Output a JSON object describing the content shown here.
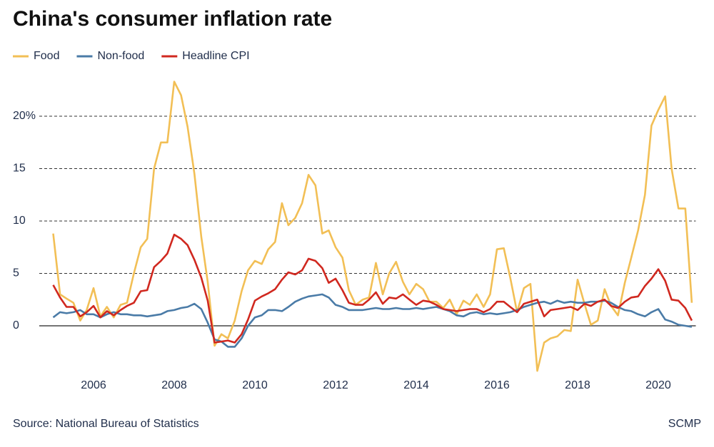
{
  "chart_data": {
    "type": "line",
    "title": "China's consumer inflation rate",
    "source": "Source: National Bureau of Statistics",
    "credit": "SCMP",
    "x": [
      2005,
      2005.17,
      2005.33,
      2005.5,
      2005.67,
      2005.83,
      2006,
      2006.17,
      2006.33,
      2006.5,
      2006.67,
      2006.83,
      2007,
      2007.17,
      2007.33,
      2007.5,
      2007.67,
      2007.83,
      2008,
      2008.17,
      2008.33,
      2008.5,
      2008.67,
      2008.83,
      2009,
      2009.17,
      2009.33,
      2009.5,
      2009.67,
      2009.83,
      2010,
      2010.17,
      2010.33,
      2010.5,
      2010.67,
      2010.83,
      2011,
      2011.17,
      2011.33,
      2011.5,
      2011.67,
      2011.83,
      2012,
      2012.17,
      2012.33,
      2012.5,
      2012.67,
      2012.83,
      2013,
      2013.17,
      2013.33,
      2013.5,
      2013.67,
      2013.83,
      2014,
      2014.17,
      2014.33,
      2014.5,
      2014.67,
      2014.83,
      2015,
      2015.17,
      2015.33,
      2015.5,
      2015.67,
      2015.83,
      2016,
      2016.17,
      2016.33,
      2016.5,
      2016.67,
      2016.83,
      2017,
      2017.17,
      2017.33,
      2017.5,
      2017.67,
      2017.83,
      2018,
      2018.17,
      2018.33,
      2018.5,
      2018.67,
      2018.83,
      2019,
      2019.17,
      2019.33,
      2019.5,
      2019.67,
      2019.83,
      2020,
      2020.17,
      2020.33,
      2020.5,
      2020.67,
      2020.83
    ],
    "series": [
      {
        "name": "Food",
        "color": "#f2bf55",
        "values": [
          8.8,
          3.0,
          2.6,
          2.2,
          0.5,
          1.5,
          3.6,
          0.9,
          1.8,
          0.8,
          2.0,
          2.2,
          5.0,
          7.5,
          8.3,
          15.0,
          17.5,
          17.5,
          23.3,
          22.0,
          19.0,
          14.5,
          8.5,
          4.2,
          -1.9,
          -0.8,
          -1.2,
          0.5,
          3.3,
          5.3,
          6.2,
          5.9,
          7.3,
          8.0,
          11.7,
          9.6,
          10.3,
          11.7,
          14.4,
          13.4,
          8.8,
          9.1,
          7.5,
          6.5,
          3.4,
          2.0,
          2.5,
          2.7,
          6.0,
          3.0,
          5.0,
          6.1,
          4.2,
          3.0,
          4.0,
          3.5,
          2.3,
          2.3,
          1.7,
          2.5,
          1.1,
          2.4,
          2.0,
          3.0,
          1.8,
          3.0,
          7.3,
          7.4,
          4.6,
          1.3,
          3.6,
          4.0,
          -4.3,
          -1.6,
          -1.2,
          -1.0,
          -0.4,
          -0.5,
          4.4,
          2.1,
          0.1,
          0.5,
          3.5,
          1.9,
          1.0,
          4.1,
          6.5,
          9.1,
          12.5,
          19.1,
          20.6,
          21.9,
          15.0,
          11.2,
          11.2,
          2.2
        ]
      },
      {
        "name": "Non-food",
        "color": "#4a7ba7",
        "values": [
          0.8,
          1.3,
          1.2,
          1.3,
          1.5,
          1.1,
          1.1,
          0.8,
          1.1,
          1.3,
          1.1,
          1.1,
          1.0,
          1.0,
          0.9,
          1.0,
          1.1,
          1.4,
          1.5,
          1.7,
          1.8,
          2.1,
          1.6,
          0.3,
          -1.3,
          -1.5,
          -2.0,
          -2.0,
          -1.2,
          0.0,
          0.8,
          1.0,
          1.5,
          1.5,
          1.4,
          1.8,
          2.3,
          2.6,
          2.8,
          2.9,
          3.0,
          2.7,
          2.0,
          1.8,
          1.5,
          1.5,
          1.5,
          1.6,
          1.7,
          1.6,
          1.6,
          1.7,
          1.6,
          1.6,
          1.7,
          1.6,
          1.7,
          1.8,
          1.6,
          1.4,
          1.0,
          0.9,
          1.2,
          1.3,
          1.1,
          1.2,
          1.1,
          1.2,
          1.3,
          1.5,
          1.8,
          2.0,
          2.2,
          2.3,
          2.1,
          2.4,
          2.2,
          2.3,
          2.2,
          2.2,
          2.3,
          2.3,
          2.4,
          2.2,
          1.8,
          1.5,
          1.4,
          1.1,
          0.9,
          1.3,
          1.6,
          0.6,
          0.4,
          0.1,
          0.0,
          -0.1
        ]
      },
      {
        "name": "Headline CPI",
        "color": "#d0281f",
        "values": [
          3.9,
          2.7,
          1.8,
          1.8,
          0.9,
          1.3,
          1.9,
          0.8,
          1.4,
          1.0,
          1.5,
          1.9,
          2.2,
          3.3,
          3.4,
          5.6,
          6.2,
          6.9,
          8.7,
          8.3,
          7.7,
          6.3,
          4.6,
          2.4,
          -1.6,
          -1.5,
          -1.4,
          -1.6,
          -0.8,
          0.6,
          2.4,
          2.8,
          3.1,
          3.5,
          4.4,
          5.1,
          4.9,
          5.3,
          6.4,
          6.2,
          5.5,
          4.1,
          4.5,
          3.4,
          2.2,
          2.0,
          2.0,
          2.5,
          3.2,
          2.1,
          2.7,
          2.6,
          3.0,
          2.5,
          2.0,
          2.4,
          2.3,
          2.0,
          1.6,
          1.5,
          1.4,
          1.5,
          1.6,
          1.6,
          1.3,
          1.6,
          2.3,
          2.3,
          1.8,
          1.3,
          2.1,
          2.3,
          2.5,
          0.9,
          1.5,
          1.6,
          1.7,
          1.8,
          1.5,
          2.1,
          1.9,
          2.3,
          2.5,
          1.9,
          1.7,
          2.3,
          2.7,
          2.8,
          3.8,
          4.5,
          5.4,
          4.3,
          2.5,
          2.4,
          1.7,
          0.5
        ]
      }
    ],
    "xlim": [
      2004.04,
      2020.93
    ],
    "xticks": [
      2006,
      2008,
      2010,
      2012,
      2014,
      2016,
      2018,
      2020
    ],
    "ylim": [
      -5,
      24
    ],
    "yticks": [
      0,
      5,
      10,
      15,
      {
        "value": 20,
        "label": "20%"
      }
    ],
    "grid": true,
    "legend": "top-left"
  }
}
